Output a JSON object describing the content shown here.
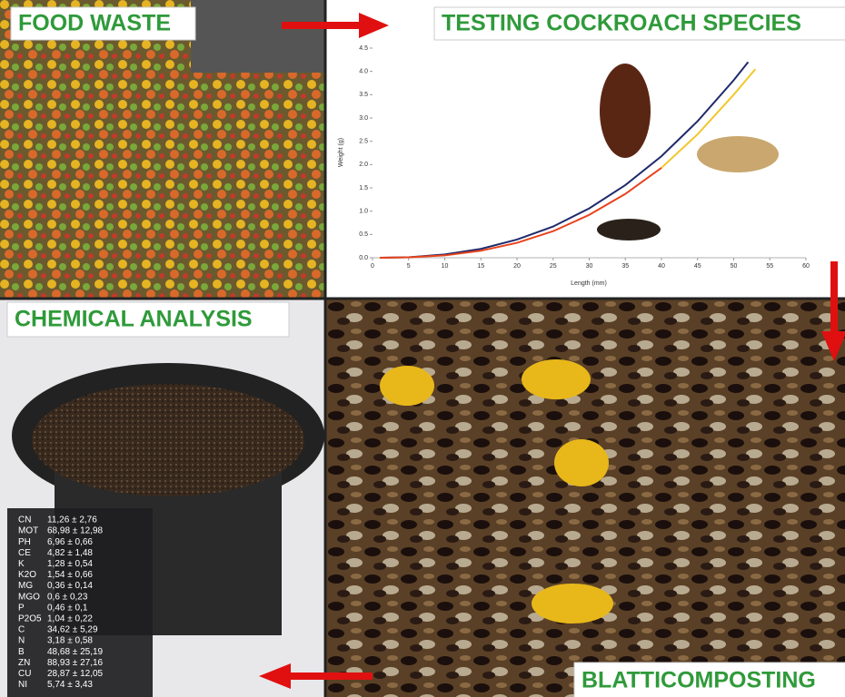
{
  "panels": {
    "food_waste": "FOOD WASTE",
    "testing": "TESTING COCKROACH SPECIES",
    "chemical": "CHEMICAL ANALYSIS",
    "composting": "BLATTICOMPOSTING"
  },
  "chemical_table": {
    "rows": [
      [
        "CN",
        "11,26 ± 2,76"
      ],
      [
        "MOT",
        "68,98 ± 12,98"
      ],
      [
        "PH",
        "6,96 ± 0,66"
      ],
      [
        "CE",
        "4,82 ± 1,48"
      ],
      [
        "K",
        "1,28 ± 0,54"
      ],
      [
        "K2O",
        "1,54 ± 0,66"
      ],
      [
        "MG",
        "0,36 ± 0,14"
      ],
      [
        "MGO",
        "0,6 ± 0,23"
      ],
      [
        "P",
        "0,46 ± 0,1"
      ],
      [
        "P2O5",
        "1,04 ± 0,22"
      ],
      [
        "C",
        "34,62 ± 5,29"
      ],
      [
        "N",
        "3,18 ± 0,58"
      ],
      [
        "B",
        "48,68 ± 25,19"
      ],
      [
        "ZN",
        "88,93 ± 27,16"
      ],
      [
        "CU",
        "28,87 ± 12,05"
      ],
      [
        "NI",
        "5,74 ± 3,43"
      ]
    ]
  },
  "chart_data": {
    "type": "line",
    "x_label": "Length (mm)",
    "y_label": "Weight (g)",
    "xlim": [
      0,
      60
    ],
    "xticks": [
      0,
      5,
      10,
      15,
      20,
      25,
      30,
      35,
      40,
      45,
      50,
      55,
      60
    ],
    "ylim": [
      0,
      4.5
    ],
    "yticks": [
      {
        "value": 0,
        "label": "0.0"
      },
      0.5,
      {
        "value": 1,
        "label": "1.0"
      },
      1.5,
      {
        "value": 2,
        "label": "2.0"
      },
      2.5,
      {
        "value": 3,
        "label": "3.0"
      },
      3.5,
      {
        "value": 4,
        "label": "4.0"
      },
      4.5
    ],
    "series": [
      {
        "color": "#1f2a6b",
        "x": [
          1,
          5,
          10,
          15,
          20,
          25,
          30,
          35,
          40,
          45,
          50,
          52
        ],
        "values": [
          0.0,
          0.01,
          0.07,
          0.19,
          0.39,
          0.67,
          1.06,
          1.56,
          2.18,
          2.93,
          3.81,
          4.2
        ]
      },
      {
        "color": "#e8431c",
        "x": [
          1,
          5,
          10,
          15,
          20,
          25,
          30,
          35,
          40
        ],
        "values": [
          0.0,
          0.01,
          0.05,
          0.15,
          0.32,
          0.57,
          0.92,
          1.37,
          1.93
        ]
      },
      {
        "color": "#f2c62a",
        "x": [
          40,
          45,
          50,
          53
        ],
        "values": [
          1.93,
          2.65,
          3.5,
          4.05
        ]
      }
    ]
  }
}
